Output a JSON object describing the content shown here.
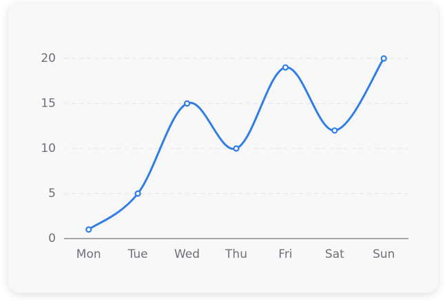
{
  "chart_data": {
    "type": "line",
    "smooth": true,
    "categories": [
      "Mon",
      "Tue",
      "Wed",
      "Thu",
      "Fri",
      "Sat",
      "Sun"
    ],
    "values": [
      1,
      5,
      15,
      10,
      19,
      12,
      20
    ],
    "color": "#2f7de6",
    "ylim": [
      0,
      20
    ],
    "yticks": [
      0,
      5,
      10,
      15,
      20
    ],
    "grid": true
  }
}
